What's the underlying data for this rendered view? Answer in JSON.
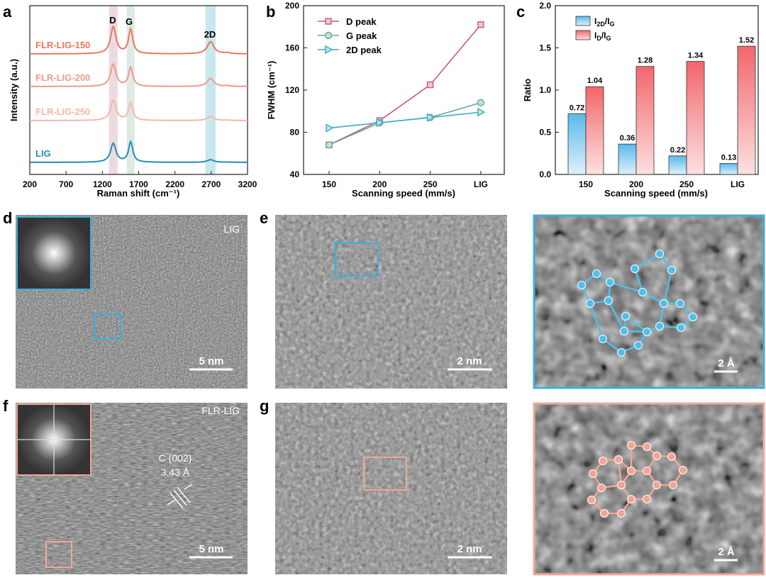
{
  "panel_letters": {
    "a": "a",
    "b": "b",
    "c": "c",
    "d": "d",
    "e": "e",
    "f": "f",
    "g": "g"
  },
  "chart_data": [
    {
      "type": "line",
      "panel": "a",
      "title": "",
      "xlabel": "Raman shift (cm⁻¹)",
      "ylabel": "Intensity (a.u.)",
      "xlim": [
        200,
        3200
      ],
      "xticks": [
        "200",
        "700",
        "1200",
        "1700",
        "2200",
        "2700",
        "3200"
      ],
      "band_labels": {
        "D": "D",
        "G": "G",
        "2D": "2D"
      },
      "bands": [
        {
          "name": "D",
          "center": 1350,
          "color": "#ead4dc"
        },
        {
          "name": "G",
          "center": 1590,
          "color": "#d8e6de"
        },
        {
          "name": "2D",
          "center": 2690,
          "color": "#bfe4ea"
        }
      ],
      "series": [
        {
          "name": "FLR-LIG-150",
          "color": "#e8785f",
          "d_height": 1.0,
          "g_height": 0.9,
          "g2d_height": 0.45
        },
        {
          "name": "FLR-LIG-200",
          "color": "#f09a86",
          "d_height": 0.82,
          "g_height": 0.7,
          "g2d_height": 0.3
        },
        {
          "name": "FLR-LIG-250",
          "color": "#f5b7a8",
          "d_height": 0.75,
          "g_height": 0.65,
          "g2d_height": 0.15
        },
        {
          "name": "LIG",
          "color": "#1f8fb5",
          "d_height": 0.7,
          "g_height": 0.75,
          "g2d_height": 0.1
        }
      ]
    },
    {
      "type": "line",
      "panel": "b",
      "xlabel": "Scanning speed (mm/s)",
      "ylabel": "FWHM (cm⁻¹)",
      "categories": [
        "150",
        "200",
        "250",
        "LIG"
      ],
      "ylim": [
        40,
        200
      ],
      "yticks": [
        40,
        80,
        120,
        160,
        200
      ],
      "series": [
        {
          "name": "D peak",
          "color": "#c75b76",
          "values": [
            68,
            91,
            125,
            182
          ]
        },
        {
          "name": "G peak",
          "color": "#6aa798",
          "values": [
            68,
            89,
            94,
            108
          ]
        },
        {
          "name": "2D peak",
          "color": "#3ea9c6",
          "values": [
            84,
            89,
            94,
            99
          ]
        }
      ]
    },
    {
      "type": "bar",
      "panel": "c",
      "xlabel": "Scanning speed (mm/s)",
      "ylabel": "Ratio",
      "categories": [
        "150",
        "200",
        "250",
        "LIG"
      ],
      "ylim": [
        0,
        2.0
      ],
      "yticks": [
        "0.0",
        "0.5",
        "1.0",
        "1.5",
        "2.0"
      ],
      "series": [
        {
          "name": "I2D/IG",
          "color": "#7fc6ec",
          "values": [
            0.72,
            0.36,
            0.22,
            0.13
          ],
          "labels": [
            "0.72",
            "0.36",
            "0.22",
            "0.13"
          ]
        },
        {
          "name": "ID/IG",
          "color": "#f57c80",
          "values": [
            1.04,
            1.28,
            1.34,
            1.52
          ],
          "labels": [
            "1.04",
            "1.28",
            "1.34",
            "1.52"
          ]
        }
      ]
    }
  ],
  "images": {
    "d": {
      "label": "LIG",
      "scale": "5 nm"
    },
    "e": {
      "scale": "2 nm"
    },
    "e_zoom": {
      "scale": "2 Å"
    },
    "f": {
      "label": "FLR-LIG",
      "scale": "5 nm",
      "annotation_line1": "C (002)",
      "annotation_line2": "3.43 Å"
    },
    "g": {
      "scale": "2 nm"
    },
    "g_zoom": {
      "scale": "2 Å"
    }
  },
  "colors": {
    "blue_box": "#39b0dc",
    "pink_box": "#f0a89a",
    "lattice_blue": "#4fc0ea",
    "lattice_pink": "#f3a494"
  }
}
